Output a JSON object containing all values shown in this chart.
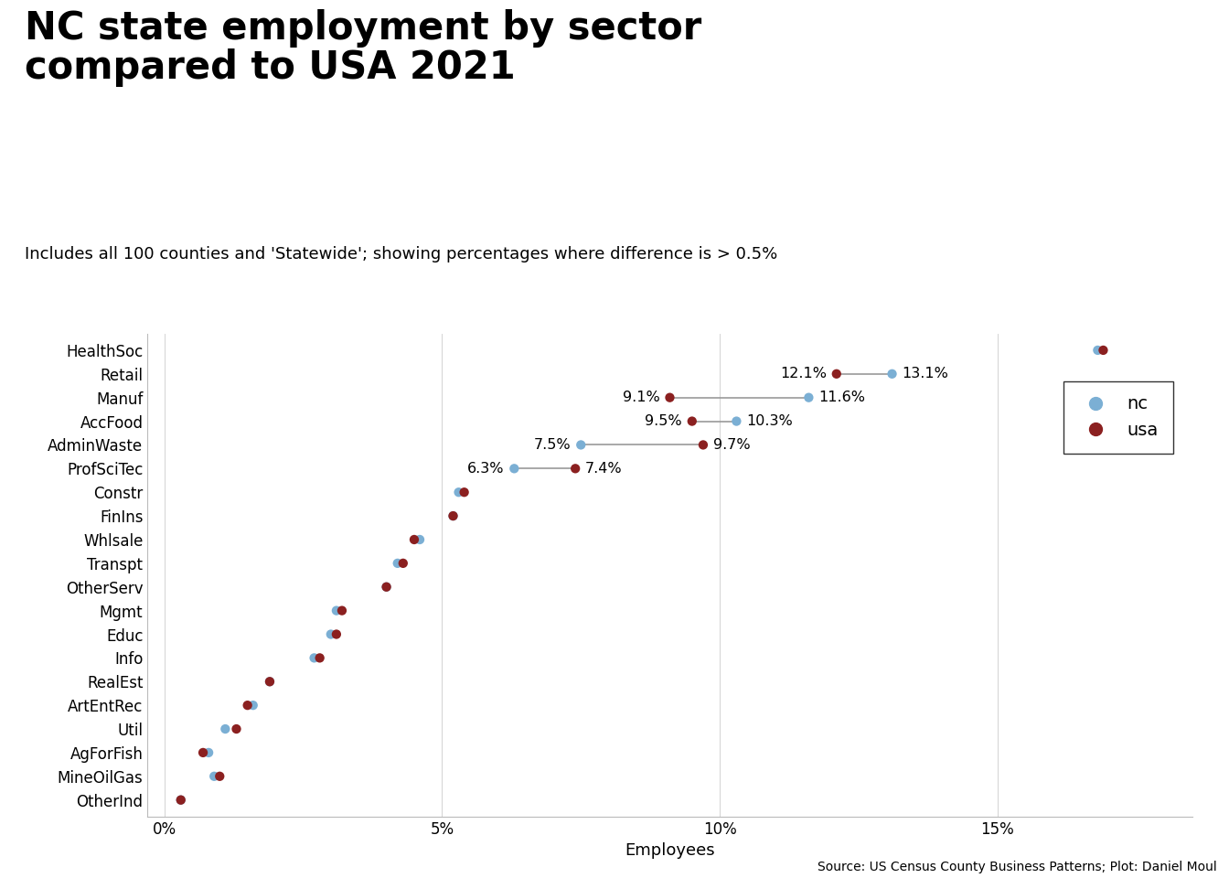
{
  "title": "NC state employment by sector\ncompared to USA 2021",
  "subtitle": "Includes all 100 counties and 'Statewide'; showing percentages where difference is > 0.5%",
  "xlabel": "Employees",
  "source": "Source: US Census County Business Patterns; Plot: Daniel Moul",
  "sectors": [
    "HealthSoc",
    "Retail",
    "Manuf",
    "AccFood",
    "AdminWaste",
    "ProfSciTec",
    "Constr",
    "FinIns",
    "Whlsale",
    "Transpt",
    "OtherServ",
    "Mgmt",
    "Educ",
    "Info",
    "RealEst",
    "ArtEntRec",
    "Util",
    "AgForFish",
    "MineOilGas",
    "OtherInd"
  ],
  "nc": [
    16.8,
    13.1,
    11.6,
    10.3,
    7.5,
    6.3,
    5.3,
    5.2,
    4.6,
    4.2,
    4.0,
    3.1,
    3.0,
    2.7,
    1.9,
    1.6,
    1.1,
    0.8,
    0.9,
    0.3
  ],
  "usa": [
    16.9,
    12.1,
    9.1,
    9.5,
    9.7,
    7.4,
    5.4,
    5.2,
    4.5,
    4.3,
    4.0,
    3.2,
    3.1,
    2.8,
    1.9,
    1.5,
    1.3,
    0.7,
    1.0,
    0.3
  ],
  "annotations": {
    "AdminWaste": {
      "nc": 7.5,
      "usa": 9.7,
      "nc_left": true
    },
    "ProfSciTec": {
      "nc": 6.3,
      "usa": 7.4,
      "nc_left": true
    },
    "AccFood": {
      "nc": 10.3,
      "usa": 9.5,
      "nc_left": false
    },
    "Manuf": {
      "nc": 11.6,
      "usa": 9.1,
      "nc_left": false
    },
    "Retail": {
      "nc": 13.1,
      "usa": 12.1,
      "nc_left": false
    }
  },
  "nc_color": "#7bafd4",
  "usa_color": "#8b2020",
  "line_color": "#999999",
  "diff_threshold": 0.5,
  "xlim": [
    -0.3,
    18.5
  ],
  "xticks": [
    0,
    5,
    10,
    15
  ],
  "xticklabels": [
    "0%",
    "5%",
    "10%",
    "15%"
  ],
  "background_color": "#ffffff",
  "plot_bg_color": "#ffffff",
  "title_fontsize": 30,
  "subtitle_fontsize": 13,
  "axis_label_fontsize": 13,
  "tick_fontsize": 12,
  "ytick_fontsize": 12,
  "annotation_fontsize": 11.5,
  "legend_fontsize": 14
}
